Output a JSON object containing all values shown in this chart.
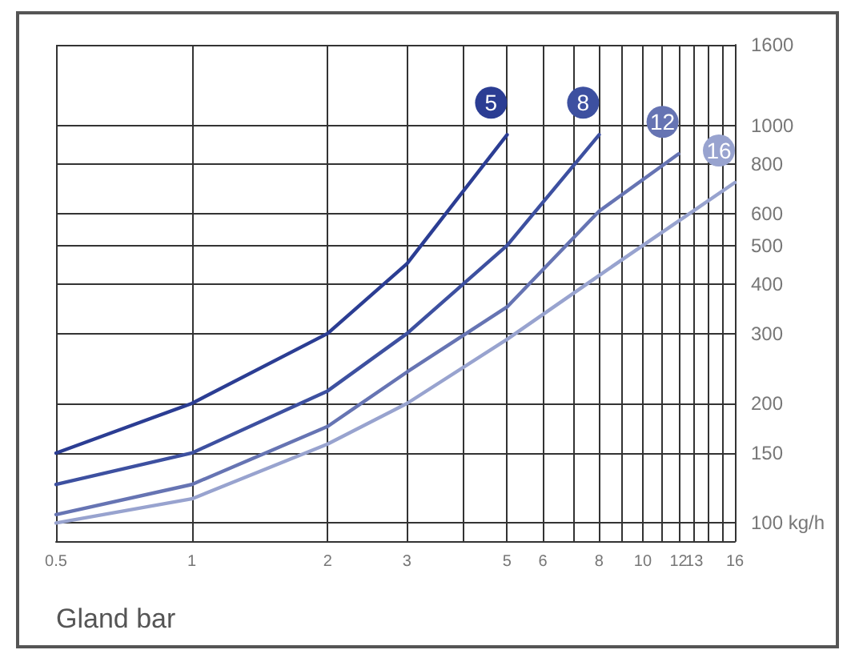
{
  "chart_data": {
    "type": "line",
    "xlabel": "Gland bar",
    "log": "xy",
    "grid": true,
    "legend": false,
    "marker": "none",
    "line_style": "solid",
    "xlim": [
      0.5,
      16
    ],
    "xticks": [
      0.5,
      1,
      2,
      3,
      {
        "value": 4,
        "label": null
      },
      5,
      6,
      {
        "value": 7,
        "label": null
      },
      8,
      {
        "value": 9,
        "label": null
      },
      10,
      {
        "value": 11,
        "label": null
      },
      12,
      13,
      {
        "value": 14,
        "label": null
      },
      {
        "value": 15,
        "label": null
      },
      16
    ],
    "ylim": [
      90,
      1600
    ],
    "yticks": [
      {
        "value": 100,
        "label": "100 kg/h"
      },
      150,
      200,
      300,
      400,
      500,
      600,
      800,
      1000,
      1600
    ],
    "series": [
      {
        "name": "5",
        "color": "#2b3d93",
        "x": [
          0.5,
          1,
          2,
          3,
          5
        ],
        "values": [
          150,
          200,
          300,
          450,
          950
        ]
      },
      {
        "name": "8",
        "color": "#3d50a0",
        "x": [
          0.5,
          1,
          2,
          3,
          5,
          8
        ],
        "values": [
          125,
          150,
          215,
          300,
          500,
          950
        ]
      },
      {
        "name": "12",
        "color": "#6674b3",
        "x": [
          0.5,
          1,
          2,
          3,
          5,
          8,
          12
        ],
        "values": [
          105,
          125,
          175,
          240,
          350,
          610,
          850
        ]
      },
      {
        "name": "16",
        "color": "#98a3cf",
        "x": [
          0.5,
          1,
          2,
          3,
          5,
          8,
          10,
          16
        ],
        "values": [
          100,
          115,
          158,
          200,
          290,
          420,
          500,
          720
        ]
      }
    ]
  }
}
